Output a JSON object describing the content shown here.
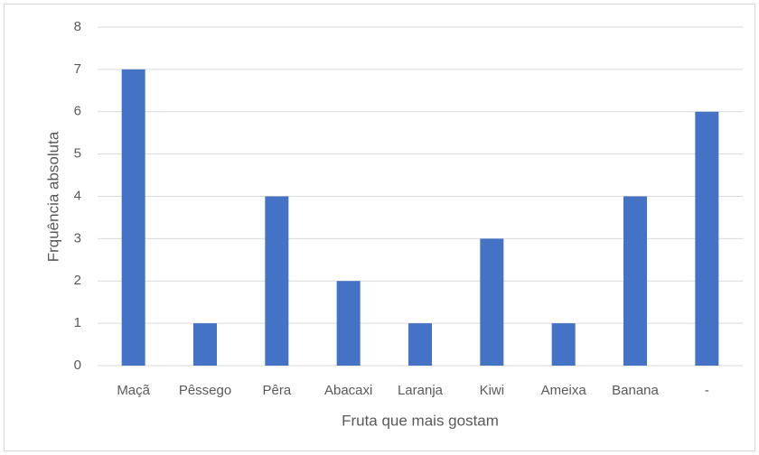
{
  "chart_data": {
    "type": "bar",
    "x_label": "Fruta que mais gostam",
    "y_label": "Frquência absoluta",
    "categories": [
      "Maçã",
      "Pêssego",
      "Pêra",
      "Abacaxi",
      "Laranja",
      "Kiwi",
      "Ameixa",
      "Banana",
      "-"
    ],
    "values": [
      7,
      1,
      4,
      2,
      1,
      3,
      1,
      4,
      6
    ],
    "color": "#4472c4",
    "ylim": [
      0,
      8
    ],
    "yticks": [
      0,
      1,
      2,
      3,
      4,
      5,
      6,
      7,
      8
    ],
    "grid": true
  }
}
